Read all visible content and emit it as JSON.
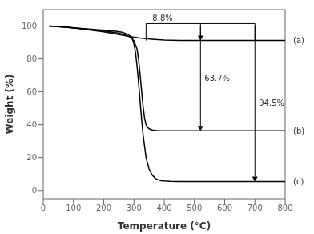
{
  "chart_data": {
    "type": "line",
    "title": "",
    "xlabel": "Temperature (°C)",
    "ylabel": "Weight (%)",
    "xlim": [
      0,
      800
    ],
    "ylim": [
      -5,
      110
    ],
    "xticks": [
      0,
      100,
      200,
      300,
      400,
      500,
      600,
      700,
      800
    ],
    "yticks": [
      0,
      20,
      40,
      60,
      80,
      100
    ],
    "series": [
      {
        "name": "(a)",
        "color": "black",
        "x": [
          20,
          50,
          80,
          100,
          130,
          160,
          200,
          230,
          260,
          280,
          300,
          320,
          340,
          360,
          380,
          400,
          450,
          500,
          600,
          700,
          800
        ],
        "values": [
          100,
          99.6,
          99.2,
          98.8,
          98.2,
          97.5,
          96.5,
          95.5,
          94.5,
          93.8,
          93.2,
          92.7,
          92.3,
          92.0,
          91.7,
          91.5,
          91.3,
          91.2,
          91.2,
          91.2,
          91.2
        ]
      },
      {
        "name": "(b)",
        "color": "black",
        "x": [
          20,
          50,
          80,
          100,
          150,
          200,
          240,
          260,
          270,
          280,
          290,
          300,
          310,
          315,
          320,
          325,
          330,
          335,
          340,
          345,
          350,
          360,
          370,
          380,
          400,
          450,
          500,
          600,
          700,
          800
        ],
        "values": [
          100,
          99.7,
          99.3,
          98.9,
          98.0,
          97.0,
          96.0,
          95.2,
          94.7,
          94.0,
          93.0,
          91.0,
          86.0,
          80.0,
          71.0,
          61.0,
          51.5,
          44.0,
          40.0,
          38.5,
          37.5,
          36.8,
          36.5,
          36.4,
          36.3,
          36.3,
          36.3,
          36.3,
          36.3,
          36.3
        ]
      },
      {
        "name": "(c)",
        "color": "black",
        "x": [
          20,
          50,
          80,
          100,
          150,
          200,
          240,
          260,
          270,
          280,
          290,
          295,
          300,
          305,
          310,
          315,
          320,
          325,
          330,
          340,
          350,
          360,
          370,
          380,
          390,
          400,
          420,
          450,
          480,
          500,
          600,
          700,
          800
        ],
        "values": [
          100,
          99.7,
          99.3,
          98.9,
          98.2,
          97.5,
          96.8,
          96.2,
          95.7,
          95.0,
          93.5,
          92.0,
          89.0,
          84.0,
          76.0,
          66.0,
          55.0,
          44.0,
          34.0,
          20.0,
          13.0,
          9.5,
          7.5,
          6.5,
          6.0,
          5.8,
          5.6,
          5.5,
          5.5,
          5.5,
          5.5,
          5.5,
          5.5
        ]
      }
    ],
    "annotations": [
      {
        "type": "bracket",
        "text": "8.8%",
        "x": [
          340,
          700
        ],
        "y": [
          101.5,
          91.2
        ],
        "color": "black"
      },
      {
        "type": "arrow",
        "text": "63.7%",
        "x": 520,
        "y": [
          100,
          36.3
        ],
        "color": "black"
      },
      {
        "type": "arrow",
        "text": "94.5%",
        "x": 700,
        "y": [
          100,
          5.5
        ],
        "color": "black"
      }
    ],
    "grid": false
  }
}
